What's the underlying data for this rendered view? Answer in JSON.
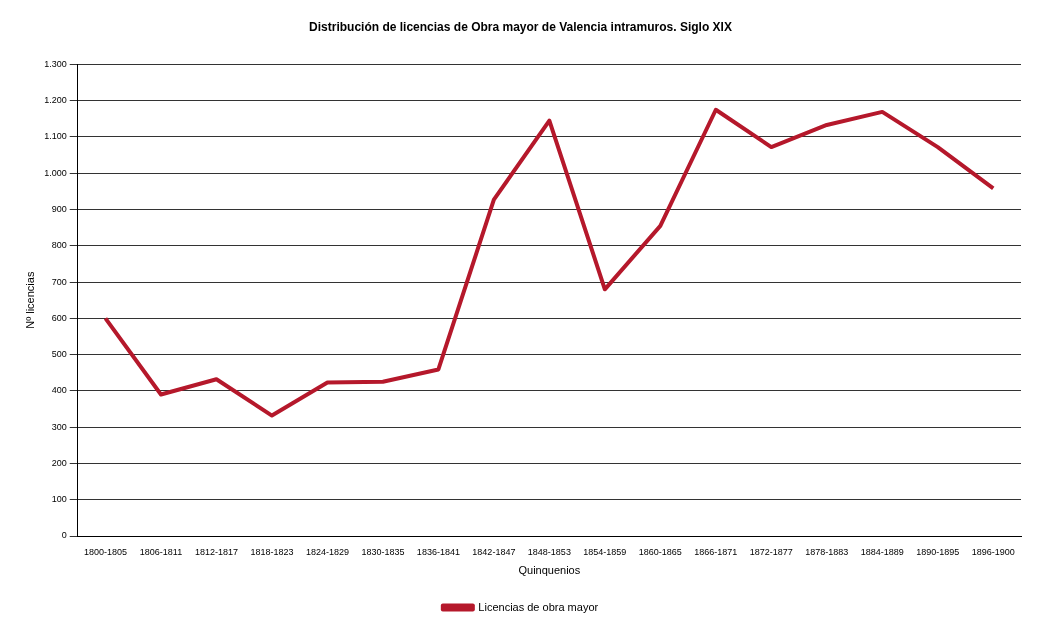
{
  "chart_data": {
    "type": "line",
    "title": "Distribución de licencias de Obra mayor de Valencia intramuros. Siglo XIX",
    "xlabel": "Quinquenios",
    "ylabel": "Nº licencias",
    "categories": [
      "1800-1805",
      "1806-1811",
      "1812-1817",
      "1818-1823",
      "1824-1829",
      "1830-1835",
      "1836-1841",
      "1842-1847",
      "1848-1853",
      "1854-1859",
      "1860-1865",
      "1866-1871",
      "1872-1877",
      "1878-1883",
      "1884-1889",
      "1890-1895",
      "1896-1900"
    ],
    "series": [
      {
        "name": "Licencias de obra mayor",
        "color": "#b5182b",
        "values": [
          600,
          390,
          432,
          332,
          423,
          425,
          459,
          927,
          1145,
          680,
          855,
          1175,
          1072,
          1133,
          1169,
          1072,
          958
        ]
      }
    ],
    "ylim": [
      0,
      1300
    ],
    "yticks": [
      0,
      100,
      200,
      300,
      400,
      500,
      600,
      700,
      800,
      900,
      {
        "value": 1000,
        "label": "1.000"
      },
      {
        "value": 1100,
        "label": "1.100"
      },
      {
        "value": 1200,
        "label": "1.200"
      },
      {
        "value": 1300,
        "label": "1.300"
      }
    ],
    "grid": "y",
    "legend": "bottom",
    "marker": "none",
    "line_style": "solid"
  }
}
